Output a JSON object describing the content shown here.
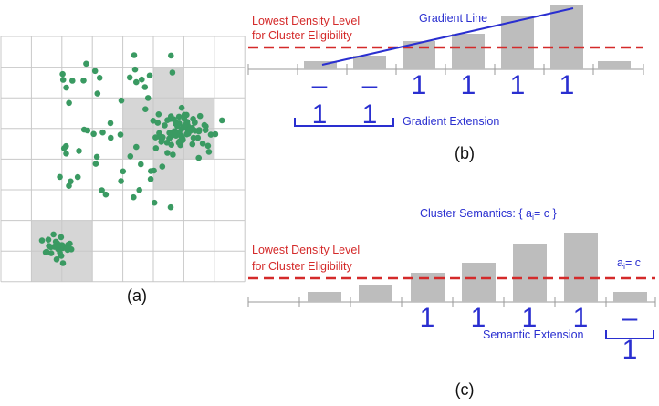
{
  "colors": {
    "grid": "#c8c8c8",
    "cell_fill": "#d6d6d6",
    "point": "#3a9a62",
    "bar": "#bdbdbd",
    "red": "#d42a2a",
    "blue": "#2a2fd0"
  },
  "panel_a": {
    "label": "(a)"
  },
  "panel_b": {
    "label": "(b)",
    "threshold_label_1": "Lowest Density Level",
    "threshold_label_2": "for Cluster Eligibility",
    "gradient_line_label": "Gradient Line",
    "gradient_extension_label": "Gradient Extension",
    "bar_marks": [
      "–",
      "–",
      "1",
      "1",
      "1",
      "1"
    ],
    "extension_values": [
      "1",
      "1"
    ]
  },
  "panel_c": {
    "label": "(c)",
    "threshold_label_1": "Lowest Density Level",
    "threshold_label_2": "for Cluster Eligibility",
    "semantics_prefix": "Cluster Semantics: { a",
    "semantics_sub": "i",
    "semantics_suffix": "= c }",
    "ai_prefix": "a",
    "ai_sub": "i",
    "ai_suffix": "= c",
    "bar_marks": [
      "1",
      "1",
      "1",
      "1",
      "–"
    ],
    "semantic_extension_label": "Semantic Extension",
    "semantic_extension_value": "1"
  }
}
